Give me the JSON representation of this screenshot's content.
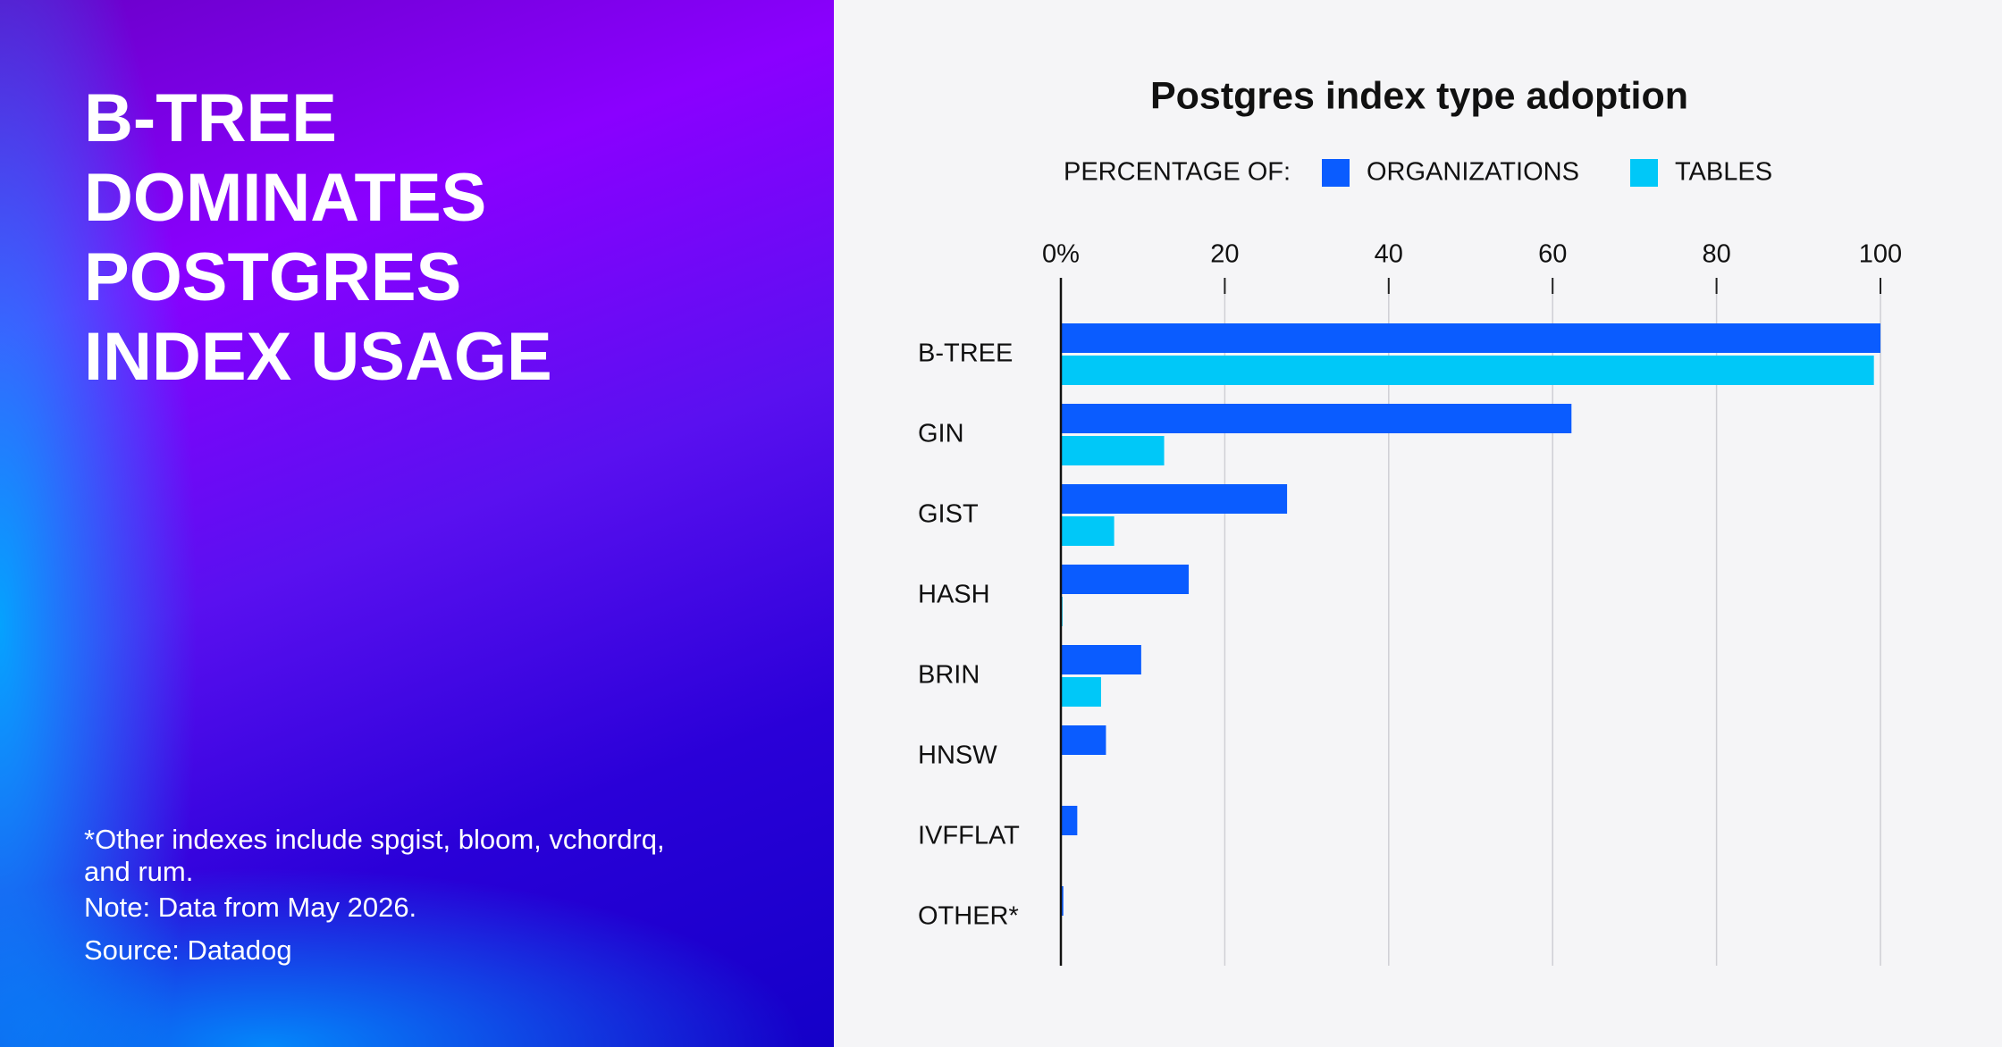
{
  "headline": "B-TREE DOMINATES POSTGRES INDEX USAGE",
  "footnotes": [
    "*Other indexes include spgist, bloom, vchordrq, and rum.",
    "Note: Data from May 2026.",
    "Source: Datadog"
  ],
  "chart_data": {
    "type": "hbar",
    "title": "Postgres index type adoption",
    "legend_label": "PERCENTAGE OF:",
    "categories": [
      "B-TREE",
      "GIN",
      "GIST",
      "HASH",
      "BRIN",
      "HNSW",
      "IVFFLAT",
      "OTHER*"
    ],
    "series": [
      {
        "name": "ORGANIZATIONS",
        "color": "#0a5cff",
        "values": [
          100,
          62.3,
          27.6,
          15.6,
          9.8,
          5.5,
          2,
          0.3
        ]
      },
      {
        "name": "TABLES",
        "color": "#00c8f8",
        "values": [
          99.2,
          12.6,
          6.5,
          0.2,
          4.9,
          0,
          0,
          0
        ]
      }
    ],
    "xlim": [
      0,
      100
    ],
    "xticks": [
      {
        "value": 0,
        "label": "0%"
      },
      20,
      40,
      60,
      80,
      100
    ],
    "grid": true
  }
}
